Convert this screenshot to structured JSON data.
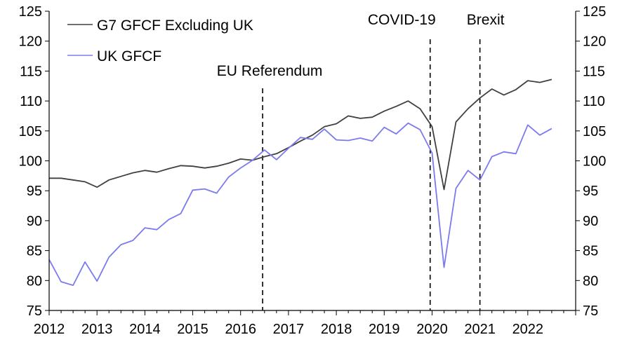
{
  "chart_data": {
    "type": "line",
    "title": "",
    "xlabel": "",
    "ylabel": "",
    "ylim": [
      75,
      125
    ],
    "xlim": [
      2012,
      2023
    ],
    "grid": false,
    "legend": "top-left",
    "x_ticks": [
      "2012",
      "2013",
      "2014",
      "2015",
      "2016",
      "2017",
      "2018",
      "2019",
      "2020",
      "2021",
      "2022"
    ],
    "x_tick_values": [
      2012,
      2013,
      2014,
      2015,
      2016,
      2017,
      2018,
      2019,
      2020,
      2021,
      2022
    ],
    "y_ticks": [
      "75",
      "80",
      "85",
      "90",
      "95",
      "100",
      "105",
      "110",
      "115",
      "120",
      "125"
    ],
    "y_tick_values": [
      75,
      80,
      85,
      90,
      95,
      100,
      105,
      110,
      115,
      120,
      125
    ],
    "x": [
      2012.0,
      2012.25,
      2012.5,
      2012.75,
      2013.0,
      2013.25,
      2013.5,
      2013.75,
      2014.0,
      2014.25,
      2014.5,
      2014.75,
      2015.0,
      2015.25,
      2015.5,
      2015.75,
      2016.0,
      2016.25,
      2016.5,
      2016.75,
      2017.0,
      2017.25,
      2017.5,
      2017.75,
      2018.0,
      2018.25,
      2018.5,
      2018.75,
      2019.0,
      2019.25,
      2019.5,
      2019.75,
      2020.0,
      2020.25,
      2020.5,
      2020.75,
      2021.0,
      2021.25,
      2021.5,
      2021.75,
      2022.0,
      2022.25,
      2022.5
    ],
    "series": [
      {
        "name": "G7 GFCF Excluding UK",
        "color": "#404040",
        "values": [
          97.1,
          97.1,
          96.8,
          96.5,
          95.6,
          96.8,
          97.4,
          98.0,
          98.4,
          98.1,
          98.7,
          99.2,
          99.1,
          98.8,
          99.1,
          99.6,
          100.3,
          100.1,
          100.7,
          101.2,
          102.2,
          103.3,
          104.3,
          105.7,
          106.2,
          107.5,
          107.1,
          107.3,
          108.3,
          109.1,
          110.0,
          108.7,
          105.7,
          95.2,
          106.5,
          108.7,
          110.5,
          112.0,
          111.0,
          111.9,
          113.4,
          113.1,
          113.6
        ]
      },
      {
        "name": "UK GFCF",
        "color": "#7b7bef",
        "values": [
          83.5,
          79.8,
          79.2,
          83.1,
          79.9,
          83.9,
          86.0,
          86.7,
          88.8,
          88.5,
          90.2,
          91.2,
          95.1,
          95.3,
          94.6,
          97.3,
          98.8,
          100.1,
          101.8,
          100.2,
          102.1,
          103.9,
          103.6,
          105.3,
          103.5,
          103.4,
          103.8,
          103.3,
          105.6,
          104.5,
          106.3,
          105.2,
          101.3,
          82.2,
          95.4,
          98.4,
          96.8,
          100.7,
          101.5,
          101.2,
          106.0,
          104.3,
          105.4
        ]
      }
    ],
    "annotations": [
      {
        "label": "EU Referendum",
        "x": 2016.46
      },
      {
        "label": "COVID-19",
        "x": 2019.96
      },
      {
        "label": "Brexit",
        "x": 2021.0
      }
    ]
  }
}
